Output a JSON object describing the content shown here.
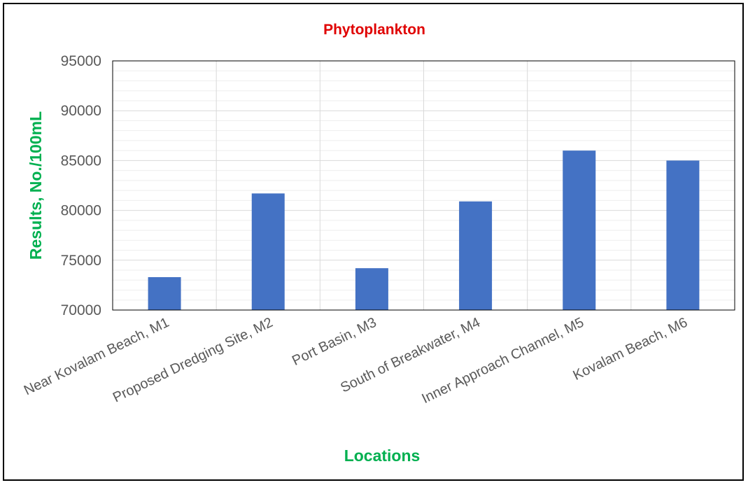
{
  "chart_data": {
    "type": "bar",
    "title": "Phytoplankton",
    "xlabel": "Locations",
    "ylabel": "Results, No./100mL",
    "categories": [
      "Near Kovalam Beach, M1",
      "Proposed Dredging Site, M2",
      "Port Basin, M3",
      "South of Breakwater, M4",
      "Inner Approach Channel, M5",
      "Kovalam Beach, M6"
    ],
    "values": [
      73300,
      81700,
      74200,
      80900,
      86000,
      85000
    ],
    "ylim": [
      70000,
      95000
    ],
    "yticks": [
      70000,
      75000,
      80000,
      85000,
      90000,
      95000
    ],
    "ytick_labels": [
      "70000",
      "75000",
      "80000",
      "85000",
      "90000",
      "95000"
    ],
    "minor_step": 1000,
    "grid": true,
    "legend": "none"
  },
  "colors": {
    "bar": "#4472C4",
    "title": "#E00000",
    "axis_title": "#00B050",
    "major_grid": "#D9D9D9",
    "minor_grid": "#EEEEEE",
    "plot_border": "#000000"
  }
}
